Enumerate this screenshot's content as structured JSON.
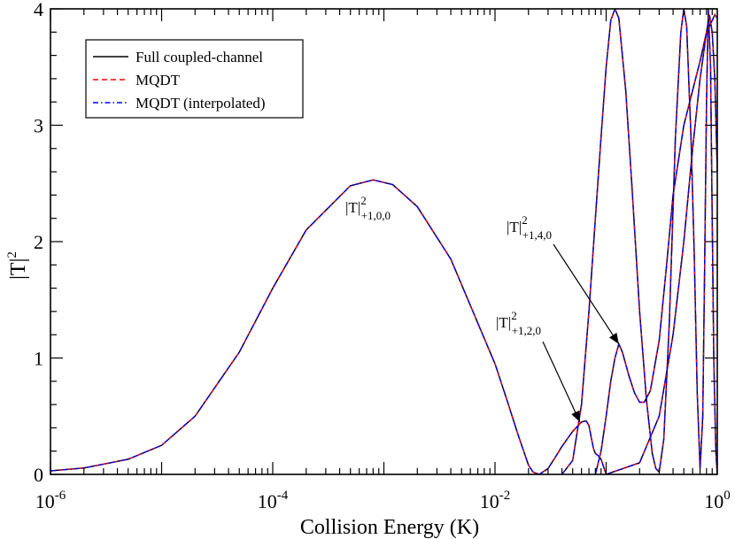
{
  "chart_data": {
    "type": "line",
    "xscale": "log",
    "xlim": [
      1e-06,
      1
    ],
    "ylim": [
      0,
      4
    ],
    "xlabel": "Collision Energy (K)",
    "ylabel": "|T|",
    "ylabel_sup": "2",
    "x_ticks": [
      {
        "base": "10",
        "exp": "-6",
        "value": 1e-06
      },
      {
        "base": "10",
        "exp": "-4",
        "value": 0.0001
      },
      {
        "base": "10",
        "exp": "-2",
        "value": 0.01
      },
      {
        "base": "10",
        "exp": "0",
        "value": 1
      }
    ],
    "y_ticks": [
      "0",
      "1",
      "2",
      "3",
      "4"
    ],
    "grid": false,
    "legend": {
      "placement": "top-left",
      "entries": [
        {
          "label": "Full coupled-channel",
          "color": "#000000",
          "style": "solid"
        },
        {
          "label": "MQDT",
          "color": "#ff0000",
          "style": "dashed"
        },
        {
          "label": "MQDT (interpolated)",
          "color": "#0000ff",
          "style": "dashdot"
        }
      ]
    },
    "annotations": [
      {
        "base": "|T|",
        "sup": "2",
        "sub": "+1,0,0",
        "x": 0.0008,
        "y": 2.53
      },
      {
        "base": "|T|",
        "sup": "2",
        "sub": "+1,4,0",
        "x": 0.13,
        "y": 1.12
      },
      {
        "base": "|T|",
        "sup": "2",
        "sub": "+1,2,0",
        "x": 0.058,
        "y": 0.45
      }
    ],
    "series": [
      {
        "id": "t100",
        "color": "#b01010",
        "style": "solid",
        "points": [
          [
            1e-06,
            0.03
          ],
          [
            2e-06,
            0.055
          ],
          [
            5e-06,
            0.13
          ],
          [
            1e-05,
            0.25
          ],
          [
            2e-05,
            0.5
          ],
          [
            5e-05,
            1.05
          ],
          [
            0.0001,
            1.6
          ],
          [
            0.0002,
            2.1
          ],
          [
            0.0005,
            2.48
          ],
          [
            0.0008,
            2.53
          ],
          [
            0.0012,
            2.49
          ],
          [
            0.002,
            2.3
          ],
          [
            0.004,
            1.85
          ],
          [
            0.007,
            1.3
          ],
          [
            0.01,
            0.95
          ],
          [
            0.013,
            0.62
          ],
          [
            0.016,
            0.35
          ],
          [
            0.02,
            0.08
          ],
          [
            0.022,
            0.02
          ],
          [
            0.025,
            0.0
          ],
          [
            0.03,
            0.05
          ],
          [
            0.035,
            0.15
          ],
          [
            0.04,
            0.24
          ],
          [
            0.05,
            0.37
          ],
          [
            0.06,
            0.45
          ],
          [
            0.066,
            0.46
          ],
          [
            0.07,
            0.42
          ],
          [
            0.074,
            0.3
          ],
          [
            0.077,
            0.22
          ],
          [
            0.08,
            0.18
          ],
          [
            0.085,
            0.16
          ],
          [
            0.09,
            0.13
          ],
          [
            0.1,
            0.0
          ]
        ]
      },
      {
        "id": "t120",
        "color": "#b01010",
        "style": "solid",
        "points": [
          [
            0.04,
            0.0
          ],
          [
            0.05,
            0.12
          ],
          [
            0.06,
            0.6
          ],
          [
            0.07,
            1.4
          ],
          [
            0.08,
            2.2
          ],
          [
            0.09,
            2.9
          ],
          [
            0.1,
            3.5
          ],
          [
            0.11,
            3.9
          ],
          [
            0.12,
            4.0
          ],
          [
            0.13,
            3.92
          ],
          [
            0.15,
            3.3
          ],
          [
            0.17,
            2.5
          ],
          [
            0.2,
            1.4
          ],
          [
            0.23,
            0.65
          ],
          [
            0.26,
            0.18
          ],
          [
            0.28,
            0.05
          ],
          [
            0.3,
            0.02
          ],
          [
            0.33,
            0.3
          ],
          [
            0.37,
            1.3
          ],
          [
            0.42,
            2.9
          ],
          [
            0.47,
            3.8
          ],
          [
            0.5,
            4.0
          ],
          [
            0.53,
            3.85
          ],
          [
            0.58,
            2.9
          ],
          [
            0.62,
            1.9
          ],
          [
            0.66,
            0.7
          ],
          [
            0.7,
            0.05
          ],
          [
            0.74,
            0.5
          ],
          [
            0.77,
            1.8
          ],
          [
            0.8,
            3.2
          ],
          [
            0.83,
            4.0
          ],
          [
            0.87,
            3.5
          ],
          [
            0.9,
            2.2
          ],
          [
            0.93,
            1.0
          ],
          [
            0.97,
            0.2
          ],
          [
            1.0,
            0.0
          ]
        ]
      },
      {
        "id": "t140",
        "color": "#b01010",
        "style": "solid",
        "points": [
          [
            0.08,
            0.0
          ],
          [
            0.09,
            0.2
          ],
          [
            0.1,
            0.5
          ],
          [
            0.11,
            0.8
          ],
          [
            0.12,
            1.0
          ],
          [
            0.13,
            1.12
          ],
          [
            0.14,
            1.05
          ],
          [
            0.16,
            0.85
          ],
          [
            0.18,
            0.7
          ],
          [
            0.2,
            0.62
          ],
          [
            0.22,
            0.62
          ],
          [
            0.25,
            0.72
          ],
          [
            0.3,
            1.15
          ],
          [
            0.35,
            1.8
          ],
          [
            0.4,
            2.4
          ],
          [
            0.5,
            3.0
          ],
          [
            0.6,
            3.3
          ],
          [
            0.7,
            3.55
          ],
          [
            0.8,
            3.8
          ],
          [
            0.9,
            3.9
          ],
          [
            0.95,
            3.95
          ],
          [
            1.0,
            3.92
          ]
        ]
      },
      {
        "id": "t160",
        "color": "#b01010",
        "style": "solid",
        "points": [
          [
            0.1,
            0.0
          ],
          [
            0.2,
            0.1
          ],
          [
            0.3,
            0.5
          ],
          [
            0.4,
            1.2
          ],
          [
            0.5,
            2.0
          ],
          [
            0.6,
            2.8
          ],
          [
            0.7,
            3.4
          ],
          [
            0.8,
            3.8
          ],
          [
            0.85,
            3.95
          ],
          [
            0.9,
            3.8
          ],
          [
            0.95,
            3.4
          ],
          [
            1.0,
            2.6
          ]
        ]
      }
    ]
  }
}
